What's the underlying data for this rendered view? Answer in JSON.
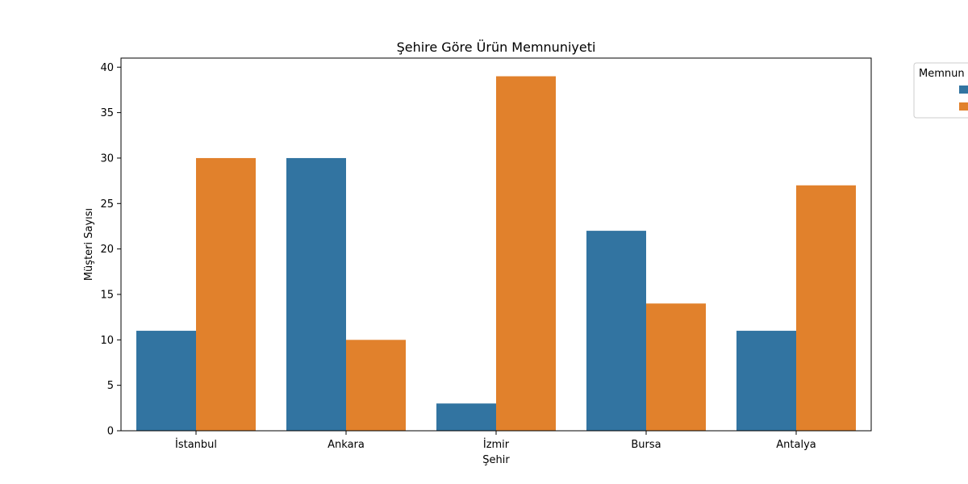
{
  "chart_data": {
    "type": "bar",
    "title": "Şehire Göre Ürün Memnuniyeti",
    "xlabel": "Şehir",
    "ylabel": "Müşteri Sayısı",
    "categories": [
      "İstanbul",
      "Ankara",
      "İzmir",
      "Bursa",
      "Antalya"
    ],
    "series": [
      {
        "values": [
          11,
          30,
          3,
          22,
          11
        ]
      },
      {
        "values": [
          30,
          10,
          39,
          14,
          27
        ]
      }
    ],
    "ylim": [
      0,
      41
    ],
    "yticks": [
      0,
      5,
      10,
      15,
      20,
      25,
      30,
      35,
      40
    ],
    "grid": false,
    "legend": {
      "title": "Memnun",
      "placement": "outside-top-right"
    },
    "colors": [
      "#3274a1",
      "#e1812c"
    ]
  }
}
